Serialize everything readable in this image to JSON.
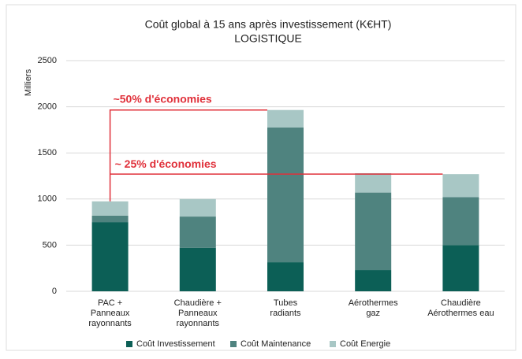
{
  "chart_data": {
    "type": "stacked_bar",
    "title": "Coût global à 15 ans après investissement (K€HT)",
    "subtitle": "LOGISTIQUE",
    "y_label": "Milliers",
    "categories": [
      [
        "PAC +",
        "Panneaux",
        "rayonnants"
      ],
      [
        "Chaudière +",
        "Panneaux",
        "rayonnants"
      ],
      [
        "Tubes",
        "radiants"
      ],
      [
        "Aérothermes",
        "gaz"
      ],
      [
        "Chaudière",
        "Aérothermes eau"
      ]
    ],
    "series": [
      {
        "name": "Coût Investissement",
        "color": "#0c5f56",
        "values": [
          750,
          470,
          315,
          230,
          500
        ]
      },
      {
        "name": "Coût Maintenance",
        "color": "#4f837f",
        "values": [
          70,
          340,
          1460,
          840,
          520
        ]
      },
      {
        "name": "Coût Energie",
        "color": "#a8c7c5",
        "values": [
          155,
          190,
          190,
          210,
          250
        ]
      }
    ],
    "ylim": [
      0,
      2500
    ],
    "yticks": [
      0,
      500,
      1000,
      1500,
      2000,
      2500
    ],
    "grid": true,
    "annotations": [
      "~50% d'économies",
      "~ 25% d'économies"
    ],
    "annotation_color": "#e0303a"
  }
}
